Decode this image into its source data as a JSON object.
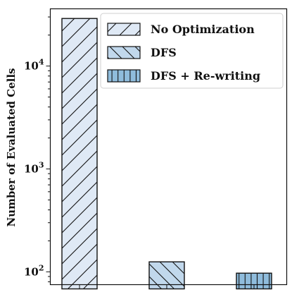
{
  "chart_data": {
    "type": "bar",
    "scale": "log",
    "ylabel": "Number of Evaluated Cells",
    "ylim": [
      75,
      36000
    ],
    "yticks": [
      {
        "value": 100,
        "base": "10",
        "exp": "2"
      },
      {
        "value": 1000,
        "base": "10",
        "exp": "3"
      },
      {
        "value": 10000,
        "base": "10",
        "exp": "4"
      }
    ],
    "series": [
      {
        "name": "No Optimization",
        "value": 29000,
        "fill": "#dfe9f5",
        "hatch": "forward-diagonal"
      },
      {
        "name": "DFS",
        "value": 125,
        "fill": "#c1d8ec",
        "hatch": "back-diagonal"
      },
      {
        "name": "DFS + Re-writing",
        "value": 97,
        "fill": "#8fbcdc",
        "hatch": "vertical"
      }
    ],
    "legend_position": "top-right",
    "grid": false
  }
}
